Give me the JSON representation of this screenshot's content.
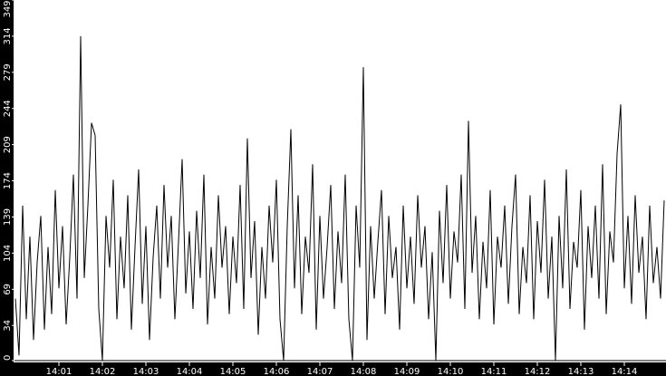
{
  "chart_data": {
    "type": "line",
    "title": "",
    "xlabel": "",
    "ylabel": "",
    "x_start": "14:00:00",
    "x_interval_seconds": 5,
    "ylim": [
      0,
      349
    ],
    "yticks": [
      "0",
      "34",
      "69",
      "104",
      "139",
      "174",
      "209",
      "244",
      "279",
      "314",
      "349"
    ],
    "xticks": [
      "14:01",
      "14:02",
      "14:03",
      "14:04",
      "14:05",
      "14:06",
      "14:07",
      "14:08",
      "14:09",
      "14:10",
      "14:11",
      "14:12",
      "14:13",
      "14:14"
    ],
    "grid": false,
    "colors": {
      "line": "#000000",
      "axis_background": "#000000",
      "axis_text": "#ffffff",
      "plot_background": "#ffffff"
    },
    "values": [
      60,
      5,
      150,
      40,
      120,
      20,
      95,
      140,
      30,
      110,
      45,
      165,
      70,
      130,
      35,
      100,
      180,
      60,
      314,
      80,
      150,
      230,
      218,
      50,
      0,
      140,
      90,
      175,
      40,
      120,
      70,
      160,
      30,
      110,
      185,
      55,
      130,
      20,
      100,
      150,
      60,
      170,
      90,
      140,
      40,
      115,
      195,
      65,
      125,
      50,
      145,
      80,
      180,
      35,
      110,
      60,
      160,
      90,
      130,
      45,
      120,
      75,
      170,
      50,
      215,
      80,
      135,
      25,
      110,
      60,
      150,
      95,
      175,
      40,
      0,
      130,
      224,
      70,
      160,
      45,
      120,
      85,
      190,
      30,
      140,
      60,
      110,
      170,
      50,
      125,
      75,
      180,
      40,
      0,
      150,
      90,
      284,
      20,
      130,
      60,
      115,
      165,
      45,
      140,
      80,
      110,
      30,
      150,
      70,
      120,
      55,
      160,
      90,
      130,
      40,
      105,
      0,
      145,
      75,
      170,
      60,
      125,
      95,
      180,
      50,
      232,
      85,
      140,
      40,
      115,
      70,
      165,
      35,
      120,
      90,
      150,
      55,
      130,
      180,
      45,
      110,
      75,
      160,
      40,
      135,
      85,
      175,
      60,
      120,
      0,
      140,
      70,
      185,
      50,
      115,
      90,
      165,
      30,
      130,
      80,
      150,
      60,
      190,
      45,
      125,
      95,
      200,
      248,
      70,
      140,
      55,
      160,
      85,
      120,
      40,
      150,
      75,
      110,
      60,
      155
    ]
  }
}
